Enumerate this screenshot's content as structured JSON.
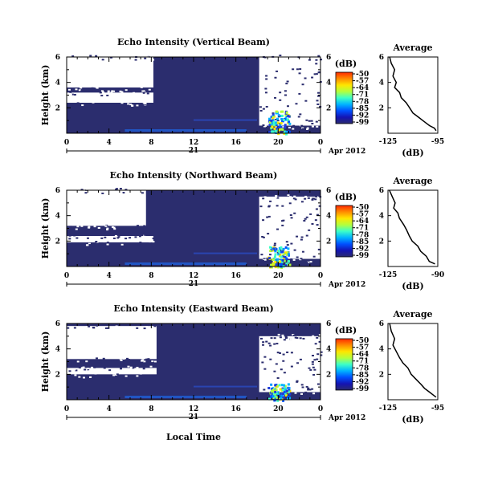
{
  "figure": {
    "date_label": "Apr 2012",
    "xlabel": "Local Time"
  },
  "colorbar": {
    "unit": "(dB)",
    "ticks": [
      "-50",
      "-57",
      "-64",
      "-71",
      "-78",
      "-85",
      "-92",
      "-99"
    ],
    "colors": [
      "#ff2a00",
      "#ff8c00",
      "#ffe600",
      "#b4ff3c",
      "#3cffc8",
      "#00b4ff",
      "#0050ff",
      "#1414b4",
      "#2a2a6e"
    ]
  },
  "chart_data": [
    {
      "type": "heatmap",
      "title": "Echo Intensity (Vertical Beam)",
      "ylabel": "Height (km)",
      "xlim": [
        0,
        24
      ],
      "ylim": [
        0,
        6
      ],
      "x_ticks": [
        "0",
        "4",
        "8",
        "12",
        "16",
        "20",
        "0"
      ],
      "y_ticks": [
        "2",
        "4",
        "6"
      ],
      "date_ticks": [
        "21"
      ],
      "color_range_db": [
        -99,
        -50
      ],
      "no_data_regions": [
        {
          "time": [
            0,
            8.2
          ],
          "height": [
            3.6,
            6
          ]
        },
        {
          "time": [
            0,
            8.2
          ],
          "height": [
            2.4,
            3.2
          ]
        },
        {
          "time": [
            18.2,
            24
          ],
          "height": [
            0.6,
            6
          ]
        }
      ],
      "strong_echo": {
        "time": [
          19,
          21
        ],
        "height": [
          0,
          1.8
        ],
        "peak_db": -64
      },
      "average_profile": {
        "title": "Average",
        "xlabel": "(dB)",
        "x_ticks": [
          "-125",
          "-95"
        ],
        "y_ticks": [
          "2",
          "4",
          "6"
        ],
        "xlim": [
          -125,
          -95
        ],
        "ylim": [
          0,
          6
        ],
        "points": [
          [
            -124,
            6.0
          ],
          [
            -123,
            5.5
          ],
          [
            -121,
            5.0
          ],
          [
            -122,
            4.5
          ],
          [
            -120,
            4.0
          ],
          [
            -121,
            3.6
          ],
          [
            -118,
            3.2
          ],
          [
            -117,
            2.8
          ],
          [
            -114,
            2.4
          ],
          [
            -112,
            2.0
          ],
          [
            -110,
            1.6
          ],
          [
            -106,
            1.2
          ],
          [
            -104,
            1.0
          ],
          [
            -102,
            0.8
          ],
          [
            -100,
            0.6
          ],
          [
            -97,
            0.4
          ],
          [
            -96,
            0.2
          ]
        ]
      }
    },
    {
      "type": "heatmap",
      "title": "Echo Intensity (Northward Beam)",
      "ylabel": "Height (km)",
      "xlim": [
        0,
        24
      ],
      "ylim": [
        0,
        6
      ],
      "x_ticks": [
        "0",
        "4",
        "8",
        "12",
        "16",
        "20",
        "0"
      ],
      "y_ticks": [
        "2",
        "4",
        "6"
      ],
      "date_ticks": [
        "21"
      ],
      "color_range_db": [
        -99,
        -50
      ],
      "no_data_regions": [
        {
          "time": [
            0,
            7.5
          ],
          "height": [
            3.2,
            6
          ]
        },
        {
          "time": [
            0,
            8.2
          ],
          "height": [
            1.9,
            2.4
          ]
        },
        {
          "time": [
            18.2,
            24
          ],
          "height": [
            0.6,
            5.5
          ]
        }
      ],
      "strong_echo": {
        "time": [
          19,
          21
        ],
        "height": [
          0,
          1.6
        ],
        "peak_db": -71
      },
      "average_profile": {
        "title": "Average",
        "xlabel": "(dB)",
        "x_ticks": [
          "-125",
          "-90"
        ],
        "y_ticks": [
          "2",
          "4",
          "6"
        ],
        "xlim": [
          -125,
          -90
        ],
        "ylim": [
          0,
          6
        ],
        "points": [
          [
            -124,
            6.0
          ],
          [
            -122,
            5.5
          ],
          [
            -120,
            5.0
          ],
          [
            -121,
            4.6
          ],
          [
            -118,
            4.2
          ],
          [
            -117,
            3.8
          ],
          [
            -114,
            3.3
          ],
          [
            -112,
            2.9
          ],
          [
            -110,
            2.4
          ],
          [
            -108,
            2.0
          ],
          [
            -104,
            1.6
          ],
          [
            -102,
            1.2
          ],
          [
            -98,
            0.8
          ],
          [
            -96,
            0.4
          ],
          [
            -92,
            0.2
          ]
        ]
      }
    },
    {
      "type": "heatmap",
      "title": "Echo Intensity (Eastward Beam)",
      "ylabel": "Height (km)",
      "xlim": [
        0,
        24
      ],
      "ylim": [
        0,
        6
      ],
      "x_ticks": [
        "0",
        "4",
        "8",
        "12",
        "16",
        "20",
        "0"
      ],
      "y_ticks": [
        "2",
        "4",
        "6"
      ],
      "date_ticks": [
        "21"
      ],
      "color_range_db": [
        -99,
        -50
      ],
      "no_data_regions": [
        {
          "time": [
            0,
            8.5
          ],
          "height": [
            3.2,
            5.8
          ]
        },
        {
          "time": [
            0,
            8.5
          ],
          "height": [
            2.0,
            2.5
          ]
        },
        {
          "time": [
            18.2,
            24
          ],
          "height": [
            0.6,
            5.0
          ]
        }
      ],
      "strong_echo": {
        "time": [
          19,
          21
        ],
        "height": [
          0,
          1.3
        ],
        "peak_db": -71
      },
      "average_profile": {
        "title": "Average",
        "xlabel": "(dB)",
        "x_ticks": [
          "-125",
          "-95"
        ],
        "y_ticks": [
          "2",
          "4",
          "6"
        ],
        "xlim": [
          -125,
          -95
        ],
        "ylim": [
          0,
          6
        ],
        "points": [
          [
            -124,
            6.0
          ],
          [
            -123,
            5.4
          ],
          [
            -121,
            4.8
          ],
          [
            -122,
            4.3
          ],
          [
            -120,
            3.8
          ],
          [
            -118,
            3.3
          ],
          [
            -116,
            2.9
          ],
          [
            -113,
            2.5
          ],
          [
            -111,
            2.0
          ],
          [
            -108,
            1.6
          ],
          [
            -105,
            1.2
          ],
          [
            -103,
            0.9
          ],
          [
            -100,
            0.6
          ],
          [
            -98,
            0.4
          ],
          [
            -96,
            0.2
          ]
        ]
      }
    }
  ]
}
